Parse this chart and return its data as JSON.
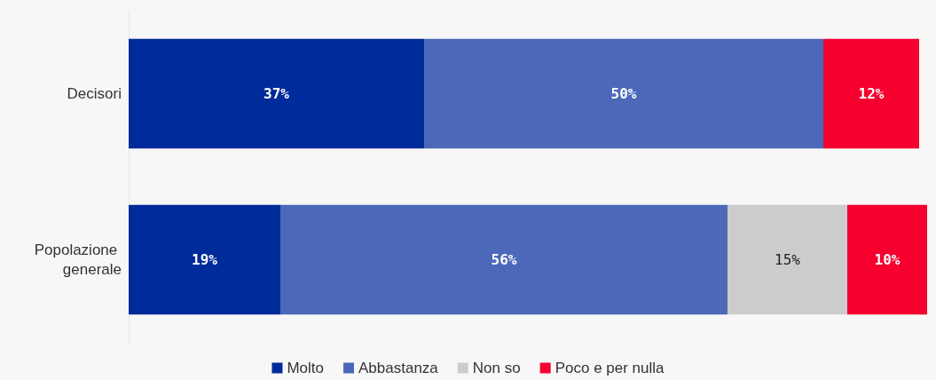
{
  "chart_data": {
    "type": "bar",
    "orientation": "horizontal",
    "stacked": true,
    "legend": "bottom",
    "categories": [
      "Decisori",
      "Popolazione generale"
    ],
    "series": [
      {
        "name": "Molto",
        "color": "#002b9a",
        "values": [
          37,
          19
        ],
        "value_labels": [
          "37%",
          "19%"
        ]
      },
      {
        "name": "Abbastanza",
        "color": "#4b69b8",
        "values": [
          50,
          56
        ],
        "value_labels": [
          "50%",
          "56%"
        ]
      },
      {
        "name": "Non so",
        "color": "#cdcccd",
        "values": [
          null,
          15
        ],
        "value_labels": [
          null,
          "15%"
        ]
      },
      {
        "name": "Poco e per nulla",
        "color": "#f5002f",
        "values": [
          12,
          10
        ],
        "value_labels": [
          "12%",
          "10%"
        ]
      }
    ]
  }
}
